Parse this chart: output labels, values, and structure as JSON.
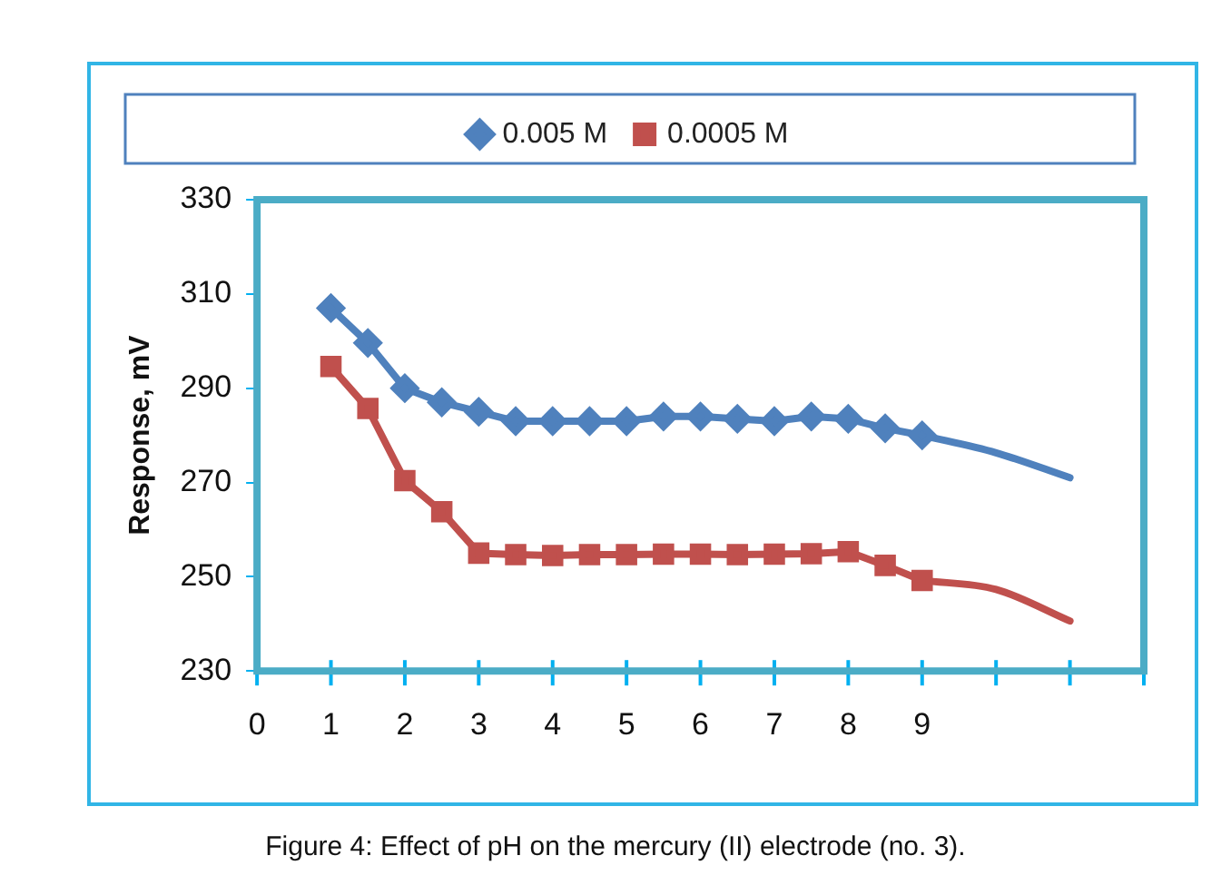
{
  "chart_data": {
    "type": "line",
    "ylabel": "Response, mV",
    "annotations": [
      "Figure 4: Effect of pH on the mercury (II) electrode (no. 3)."
    ],
    "xlim": [
      0,
      12
    ],
    "xticks": [
      0,
      1,
      2,
      3,
      4,
      5,
      6,
      7,
      8,
      9,
      {
        "value": 10,
        "label": null
      },
      {
        "value": 11,
        "label": null
      },
      {
        "value": 12,
        "label": null
      }
    ],
    "ylim": [
      230,
      330
    ],
    "yticks": [
      230,
      250,
      270,
      290,
      310,
      330
    ],
    "grid": false,
    "legend": "top",
    "series": [
      {
        "name": "0.005 M",
        "color": "#4f81bd",
        "marker": "diamond",
        "x": [
          1,
          1.5,
          2,
          2.5,
          3,
          3.5,
          4,
          4.5,
          5,
          5.5,
          6,
          6.5,
          7,
          7.5,
          8,
          8.5,
          9
        ],
        "values": [
          307,
          299.6,
          290,
          287,
          285,
          283,
          283,
          283,
          283,
          284,
          284,
          283.5,
          283,
          284,
          283.5,
          281.5,
          280
        ]
      },
      {
        "name": "0.0005 M",
        "color": "#c0504d",
        "marker": "square",
        "x": [
          1,
          1.5,
          2,
          2.5,
          3,
          3.5,
          4,
          4.5,
          5,
          5.5,
          6,
          6.5,
          7,
          7.5,
          8,
          8.5,
          9
        ],
        "values": [
          294.6,
          285.7,
          270.4,
          263.8,
          255,
          254.7,
          254.5,
          254.7,
          254.7,
          254.8,
          254.8,
          254.7,
          254.8,
          254.9,
          255.3,
          252.4,
          249.2
        ]
      },
      {
        "color": "#4f81bd",
        "marker": "none",
        "x": [
          9,
          10,
          11
        ],
        "values": [
          280,
          276.3,
          271
        ]
      },
      {
        "color": "#c0504d",
        "marker": "none",
        "x": [
          9,
          10,
          11
        ],
        "values": [
          249.2,
          247.3,
          240.6
        ]
      }
    ]
  }
}
